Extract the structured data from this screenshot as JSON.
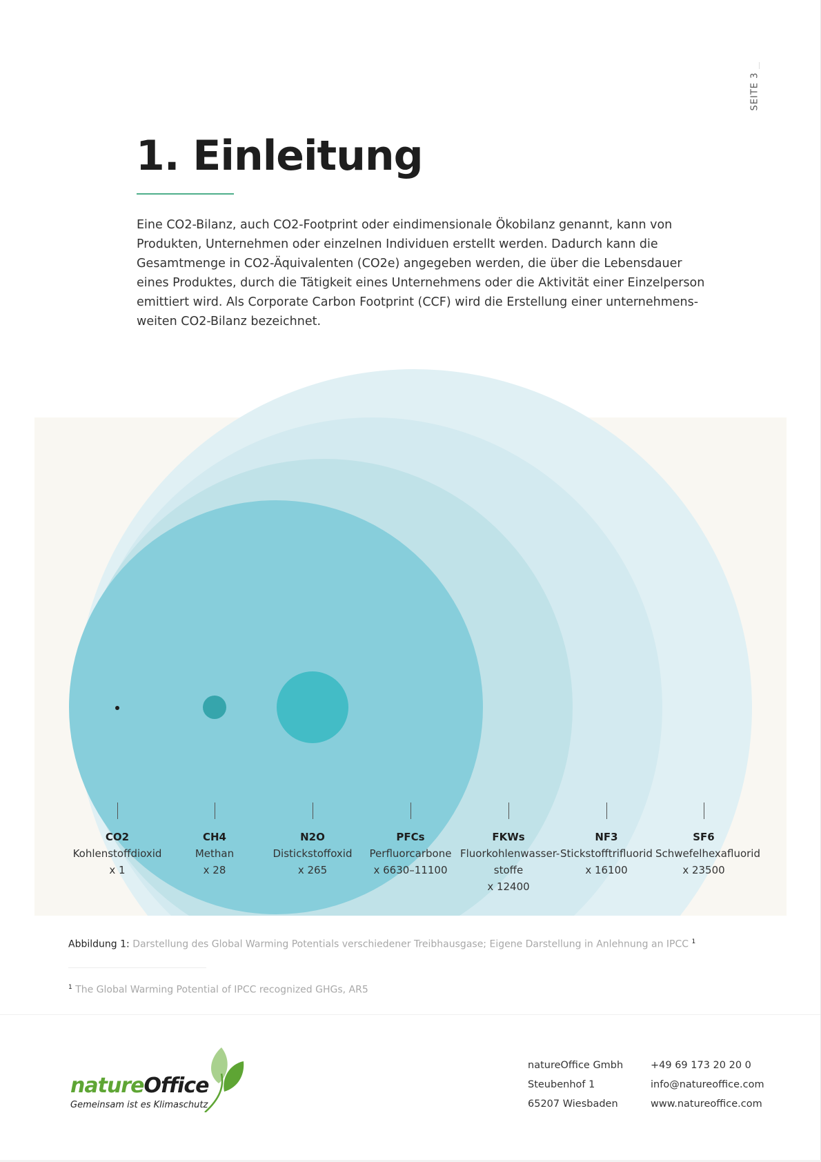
{
  "page": {
    "label": "SEITE 3"
  },
  "section": {
    "title": "1. Einleitung",
    "intro_lines": [
      "Eine CO2-Bilanz, auch CO2-Footprint oder eindimensionale Ökobilanz genannt, kann von",
      "Produkten, Unternehmen oder einzelnen Individuen erstellt werden. Dadurch kann die",
      "Gesamtmenge in CO2-Äquivalenten (CO2e) angegeben werden, die über die Lebensdauer",
      "eines Produktes, durch die Tätigkeit eines Unternehmens oder die Aktivität einer Einzelperson",
      "emittiert wird. Als Corporate Carbon Footprint (CCF) wird die Erstellung einer unternehmens-",
      "weiten CO2-Bilanz bezeichnet."
    ]
  },
  "figure": {
    "colors": {
      "background": "#f9f7f2",
      "sf6": "#e0f0f4",
      "nf3": "#d3eaf0",
      "fkws": "#c0e2e8",
      "pfcs": "#87cedb",
      "n2o": "#43bcc6",
      "ch4": "#36a5ac",
      "co2": "#1e1e1e"
    },
    "gases": [
      {
        "symbol": "CO2",
        "name": "Kohlenstoffdioxid",
        "gwp": "x 1"
      },
      {
        "symbol": "CH4",
        "name": "Methan",
        "gwp": "x 28"
      },
      {
        "symbol": "N2O",
        "name": "Distickstoffoxid",
        "gwp": "x 265"
      },
      {
        "symbol": "PFCs",
        "name": "Perfluorcarbone",
        "gwp": "x 6630–11100"
      },
      {
        "symbol": "FKWs",
        "name_line1": "Fluorkohlenwasser-",
        "name_line2": "stoffe",
        "gwp": "x 12400"
      },
      {
        "symbol": "NF3",
        "name": "Stickstofftrifluorid",
        "gwp": "x 16100"
      },
      {
        "symbol": "SF6",
        "name": "Schwefelhexafluorid",
        "gwp": "x 23500"
      }
    ],
    "caption_prefix": "Abbildung 1:",
    "caption_text": "Darstellung des Global Warming Potentials verschiedener Treibhausgase; Eigene Darstellung in Anlehnung an IPCC",
    "caption_ref": "1"
  },
  "footnote": {
    "ref": "1",
    "text": "The Global Warming Potential of IPCC recognized GHGs, AR5"
  },
  "footer": {
    "logo_name_part1": "nature",
    "logo_name_part2": "Office",
    "logo_slogan": "Gemeinsam ist es Klimaschutz",
    "logo_colors": {
      "green": "#5ea534",
      "light_green": "#a9d18e"
    },
    "address": [
      "natureOffice Gmbh",
      "Steubenhof 1",
      "65207 Wiesbaden"
    ],
    "contact": [
      "+49 69 173 20 20 0",
      "info@natureoffice.com",
      "www.natureoffice.com"
    ]
  }
}
